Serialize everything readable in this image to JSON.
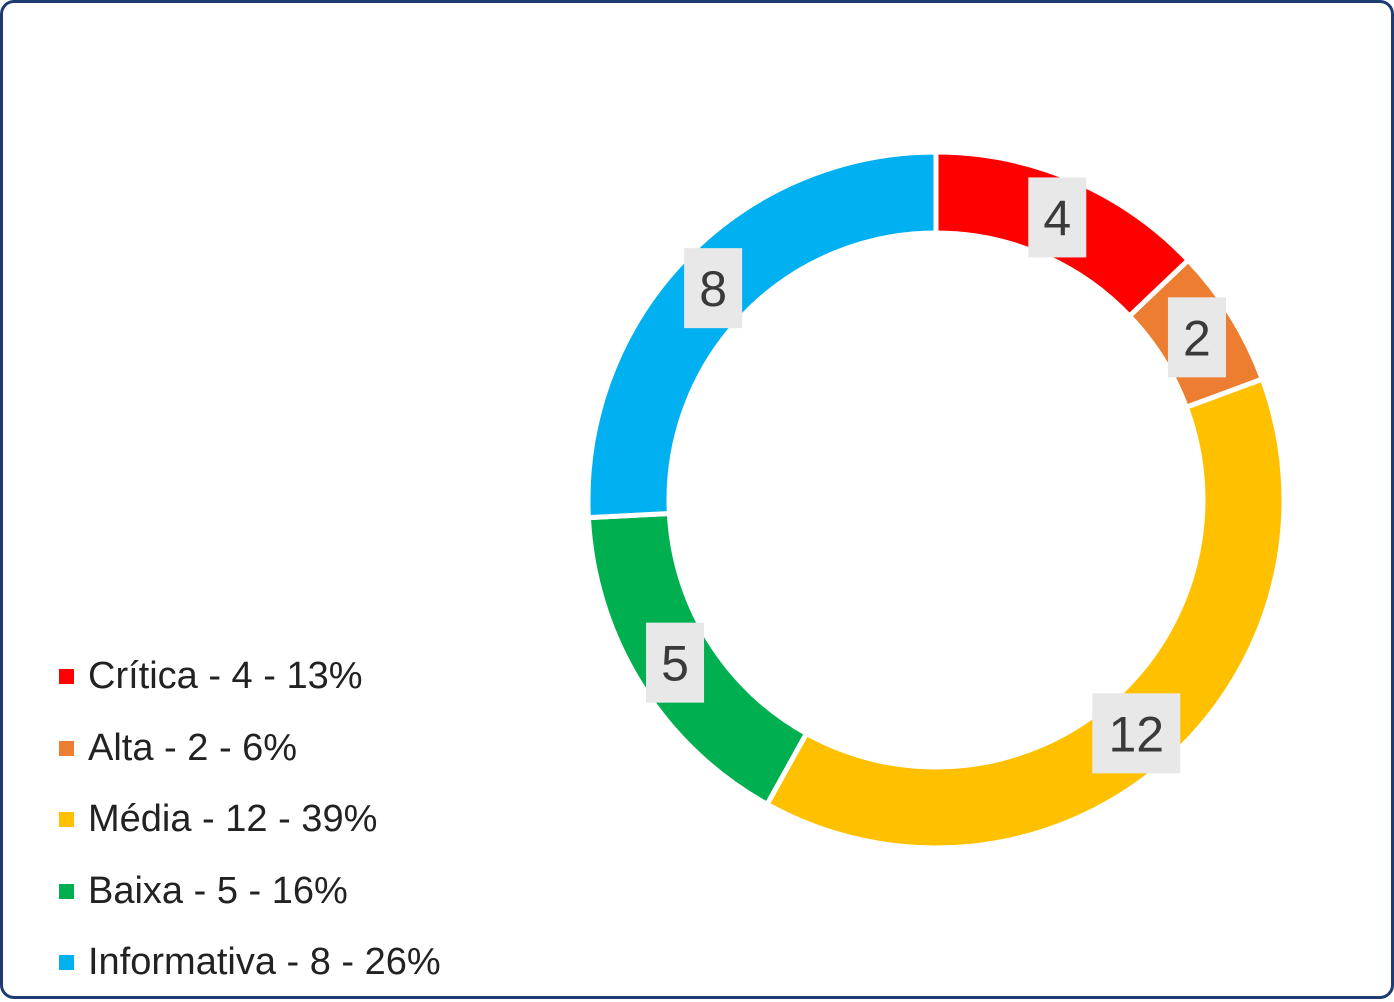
{
  "chart_data": {
    "type": "pie",
    "variant": "donut",
    "categories": [
      "Crítica",
      "Alta",
      "Média",
      "Baixa",
      "Informativa"
    ],
    "values": [
      4,
      2,
      12,
      5,
      8
    ],
    "colors": [
      "#ff0000",
      "#ed7d31",
      "#ffc000",
      "#00b050",
      "#00b0f0"
    ],
    "data_labels": [
      "4",
      "2",
      "12",
      "5",
      "8"
    ],
    "legend": {
      "placement": "bottom-left",
      "entries": [
        "Crítica - 4 - 13%",
        "Alta - 2 - 6%",
        "Média - 12 - 39%",
        "Baixa - 5 - 16%",
        "Informativa - 8 - 26%"
      ]
    }
  }
}
